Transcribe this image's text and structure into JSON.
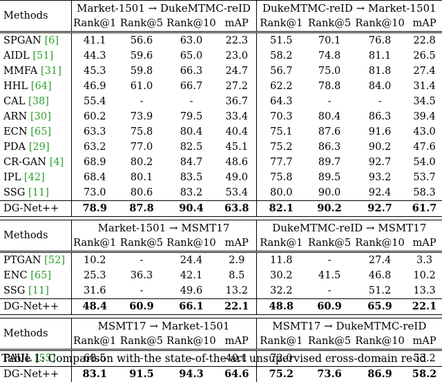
{
  "blocks": [
    {
      "methods_label": "Methods",
      "groups": [
        "Market-1501 → DukeMTMC-reID",
        "DukeMTMC-reID → Market-1501"
      ],
      "metrics": [
        "Rank@1",
        "Rank@5",
        "Rank@10",
        "mAP",
        "Rank@1",
        "Rank@5",
        "Rank@10",
        "mAP"
      ],
      "rows": [
        {
          "method": "SPGAN",
          "cite": "[6]",
          "values": [
            "41.1",
            "56.6",
            "63.0",
            "22.3",
            "51.5",
            "70.1",
            "76.8",
            "22.8"
          ]
        },
        {
          "method": "AIDL",
          "cite": "[51]",
          "values": [
            "44.3",
            "59.6",
            "65.0",
            "23.0",
            "58.2",
            "74.8",
            "81.1",
            "26.5"
          ]
        },
        {
          "method": "MMFA",
          "cite": "[31]",
          "values": [
            "45.3",
            "59.8",
            "66.3",
            "24.7",
            "56.7",
            "75.0",
            "81.8",
            "27.4"
          ]
        },
        {
          "method": "HHL",
          "cite": "[64]",
          "values": [
            "46.9",
            "61.0",
            "66.7",
            "27.2",
            "62.2",
            "78.8",
            "84.0",
            "31.4"
          ]
        },
        {
          "method": "CAL",
          "cite": "[38]",
          "values": [
            "55.4",
            "-",
            "-",
            "36.7",
            "64.3",
            "-",
            "-",
            "34.5"
          ]
        },
        {
          "method": "ARN",
          "cite": "[30]",
          "values": [
            "60.2",
            "73.9",
            "79.5",
            "33.4",
            "70.3",
            "80.4",
            "86.3",
            "39.4"
          ]
        },
        {
          "method": "ECN",
          "cite": "[65]",
          "values": [
            "63.3",
            "75.8",
            "80.4",
            "40.4",
            "75.1",
            "87.6",
            "91.6",
            "43.0"
          ]
        },
        {
          "method": "PDA",
          "cite": "[29]",
          "values": [
            "63.2",
            "77.0",
            "82.5",
            "45.1",
            "75.2",
            "86.3",
            "90.2",
            "47.6"
          ]
        },
        {
          "method": "CR-GAN",
          "cite": "[4]",
          "values": [
            "68.9",
            "80.2",
            "84.7",
            "48.6",
            "77.7",
            "89.7",
            "92.7",
            "54.0"
          ]
        },
        {
          "method": "IPL",
          "cite": "[42]",
          "values": [
            "68.4",
            "80.1",
            "83.5",
            "49.0",
            "75.8",
            "89.5",
            "93.2",
            "53.7"
          ]
        },
        {
          "method": "SSG",
          "cite": "[11]",
          "values": [
            "73.0",
            "80.6",
            "83.2",
            "53.4",
            "80.0",
            "90.0",
            "92.4",
            "58.3"
          ]
        }
      ],
      "best": {
        "method": "DG-Net++",
        "values": [
          "78.9",
          "87.8",
          "90.4",
          "63.8",
          "82.1",
          "90.2",
          "92.7",
          "61.7"
        ]
      }
    },
    {
      "methods_label": "Methods",
      "groups": [
        "Market-1501 → MSMT17",
        "DukeMTMC-reID → MSMT17"
      ],
      "metrics": [
        "Rank@1",
        "Rank@5",
        "Rank@10",
        "mAP",
        "Rank@1",
        "Rank@5",
        "Rank@10",
        "mAP"
      ],
      "rows": [
        {
          "method": "PTGAN",
          "cite": "[52]",
          "values": [
            "10.2",
            "-",
            "24.4",
            "2.9",
            "11.8",
            "-",
            "27.4",
            "3.3"
          ]
        },
        {
          "method": "ENC",
          "cite": "[65]",
          "values": [
            "25.3",
            "36.3",
            "42.1",
            "8.5",
            "30.2",
            "41.5",
            "46.8",
            "10.2"
          ]
        },
        {
          "method": "SSG",
          "cite": "[11]",
          "values": [
            "31.6",
            "-",
            "49.6",
            "13.2",
            "32.2",
            "-",
            "51.2",
            "13.3"
          ]
        }
      ],
      "best": {
        "method": "DG-Net++",
        "values": [
          "48.4",
          "60.9",
          "66.1",
          "22.1",
          "48.8",
          "60.9",
          "65.9",
          "22.1"
        ]
      }
    },
    {
      "methods_label": "Methods",
      "groups": [
        "MSMT17 → Market-1501",
        "MSMT17 → DukeMTMC-reID"
      ],
      "metrics": [
        "Rank@1",
        "Rank@5",
        "Rank@10",
        "mAP",
        "Rank@1",
        "Rank@5",
        "Rank@10",
        "mAP"
      ],
      "rows": [
        {
          "method": "PAUL",
          "cite": "[55]",
          "values": [
            "68.5",
            "-",
            "-",
            "40.1",
            "72.0",
            "-",
            "-",
            "53.2"
          ]
        }
      ],
      "best": {
        "method": "DG-Net++",
        "values": [
          "83.1",
          "91.5",
          "94.3",
          "64.6",
          "75.2",
          "73.6",
          "86.9",
          "58.2"
        ]
      }
    }
  ],
  "caption": "Table 1: Comparison with the state-of-the-art unsupervised cross-domain re-id"
}
